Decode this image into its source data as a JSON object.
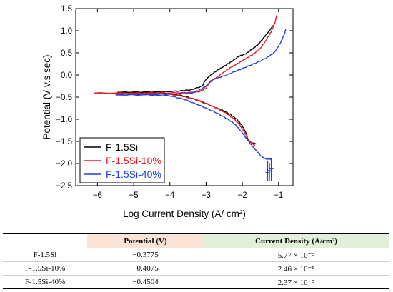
{
  "chart_data": {
    "type": "line",
    "xlabel": "Log Current Density (A/ cm²)",
    "ylabel": "Potential (V v.s sec)",
    "xlim": [
      -6.6,
      -0.6
    ],
    "ylim": [
      -2.5,
      1.5
    ],
    "x_ticks": [
      -6,
      -5,
      -4,
      -3,
      -2,
      -1
    ],
    "x_tick_labels": [
      "−6",
      "−5",
      "−4",
      "−3",
      "−2",
      "−1"
    ],
    "y_ticks": [
      1.5,
      1.0,
      0.5,
      0.0,
      -0.5,
      -1.0,
      -1.5,
      -2.0,
      -2.5
    ],
    "y_tick_labels": [
      "1.5",
      "1.0",
      "0.5",
      "0.0",
      "−0.5",
      "−1.0",
      "−1.5",
      "−2.0",
      "−2.5"
    ],
    "grid": false,
    "legend_position": "bottom-left",
    "series": [
      {
        "name": "F-1.5Si",
        "color": "#000000",
        "anodic": [
          [
            -5.45,
            -0.39
          ],
          [
            -4.8,
            -0.385
          ],
          [
            -4.2,
            -0.38
          ],
          [
            -3.7,
            -0.36
          ],
          [
            -3.4,
            -0.33
          ],
          [
            -3.1,
            -0.25
          ],
          [
            -3.05,
            -0.15
          ],
          [
            -2.9,
            -0.02
          ],
          [
            -2.7,
            0.1
          ],
          [
            -2.5,
            0.2
          ],
          [
            -2.3,
            0.3
          ],
          [
            -2.1,
            0.42
          ],
          [
            -1.9,
            0.48
          ],
          [
            -1.7,
            0.6
          ],
          [
            -1.55,
            0.7
          ],
          [
            -1.4,
            0.85
          ],
          [
            -1.25,
            1.0
          ],
          [
            -1.15,
            1.12
          ]
        ],
        "cathodic": [
          [
            -5.45,
            -0.39
          ],
          [
            -4.8,
            -0.39
          ],
          [
            -4.2,
            -0.41
          ],
          [
            -3.7,
            -0.46
          ],
          [
            -3.3,
            -0.55
          ],
          [
            -2.9,
            -0.68
          ],
          [
            -2.6,
            -0.78
          ],
          [
            -2.35,
            -0.88
          ],
          [
            -2.15,
            -1.0
          ],
          [
            -2.0,
            -1.15
          ],
          [
            -1.9,
            -1.3
          ],
          [
            -1.85,
            -1.45
          ],
          [
            -1.75,
            -1.53
          ],
          [
            -1.62,
            -1.55
          ]
        ]
      },
      {
        "name": "F-1.5Si-10%",
        "color": "#e8191f",
        "anodic": [
          [
            -6.1,
            -0.41
          ],
          [
            -5.0,
            -0.41
          ],
          [
            -4.2,
            -0.405
          ],
          [
            -3.6,
            -0.4
          ],
          [
            -3.2,
            -0.38
          ],
          [
            -3.0,
            -0.3
          ],
          [
            -2.9,
            -0.15
          ],
          [
            -2.7,
            -0.05
          ],
          [
            -2.5,
            0.07
          ],
          [
            -2.3,
            0.18
          ],
          [
            -2.1,
            0.27
          ],
          [
            -1.9,
            0.37
          ],
          [
            -1.7,
            0.47
          ],
          [
            -1.5,
            0.6
          ],
          [
            -1.35,
            0.78
          ],
          [
            -1.2,
            0.98
          ],
          [
            -1.1,
            1.18
          ],
          [
            -1.05,
            1.35
          ]
        ],
        "cathodic": [
          [
            -6.1,
            -0.41
          ],
          [
            -5.0,
            -0.41
          ],
          [
            -4.2,
            -0.42
          ],
          [
            -3.7,
            -0.47
          ],
          [
            -3.3,
            -0.55
          ],
          [
            -3.0,
            -0.64
          ],
          [
            -2.7,
            -0.75
          ],
          [
            -2.45,
            -0.86
          ],
          [
            -2.25,
            -0.98
          ],
          [
            -2.1,
            -1.1
          ],
          [
            -2.0,
            -1.22
          ],
          [
            -1.9,
            -1.35
          ],
          [
            -1.85,
            -1.47
          ],
          [
            -1.75,
            -1.53
          ],
          [
            -1.65,
            -1.6
          ]
        ]
      },
      {
        "name": "F-1.5Si-40%",
        "color": "#1f3fe0",
        "anodic": [
          [
            -5.5,
            -0.45
          ],
          [
            -4.6,
            -0.44
          ],
          [
            -3.9,
            -0.43
          ],
          [
            -3.4,
            -0.41
          ],
          [
            -3.2,
            -0.35
          ],
          [
            -3.0,
            -0.25
          ],
          [
            -2.8,
            -0.1
          ],
          [
            -2.5,
            -0.02
          ],
          [
            -2.2,
            0.08
          ],
          [
            -1.9,
            0.18
          ],
          [
            -1.6,
            0.28
          ],
          [
            -1.3,
            0.4
          ],
          [
            -1.1,
            0.52
          ],
          [
            -0.95,
            0.72
          ],
          [
            -0.85,
            0.9
          ],
          [
            -0.8,
            1.03
          ]
        ],
        "cathodic": [
          [
            -5.5,
            -0.45
          ],
          [
            -4.6,
            -0.45
          ],
          [
            -4.0,
            -0.47
          ],
          [
            -3.6,
            -0.55
          ],
          [
            -3.2,
            -0.68
          ],
          [
            -2.8,
            -0.82
          ],
          [
            -2.5,
            -0.95
          ],
          [
            -2.25,
            -1.08
          ],
          [
            -2.05,
            -1.25
          ],
          [
            -1.9,
            -1.42
          ],
          [
            -1.75,
            -1.58
          ],
          [
            -1.6,
            -1.72
          ],
          [
            -1.5,
            -1.82
          ],
          [
            -1.4,
            -1.88
          ],
          [
            -1.3,
            -1.9
          ],
          [
            -1.2,
            -1.9
          ],
          [
            -1.2,
            -2.35
          ]
        ]
      }
    ]
  },
  "table": {
    "headers": [
      "",
      "Potential (V)",
      "Current Density (A/cm²)"
    ],
    "rows": [
      [
        "F-1.5Si",
        "−0.3775",
        "5.77 × 10⁻⁵"
      ],
      [
        "F-1.5Si-10%",
        "−0.4075",
        "2.46 × 10⁻⁵"
      ],
      [
        "F-1.5Si-40%",
        "−0.4504",
        "2.37 × 10⁻⁵"
      ]
    ]
  }
}
